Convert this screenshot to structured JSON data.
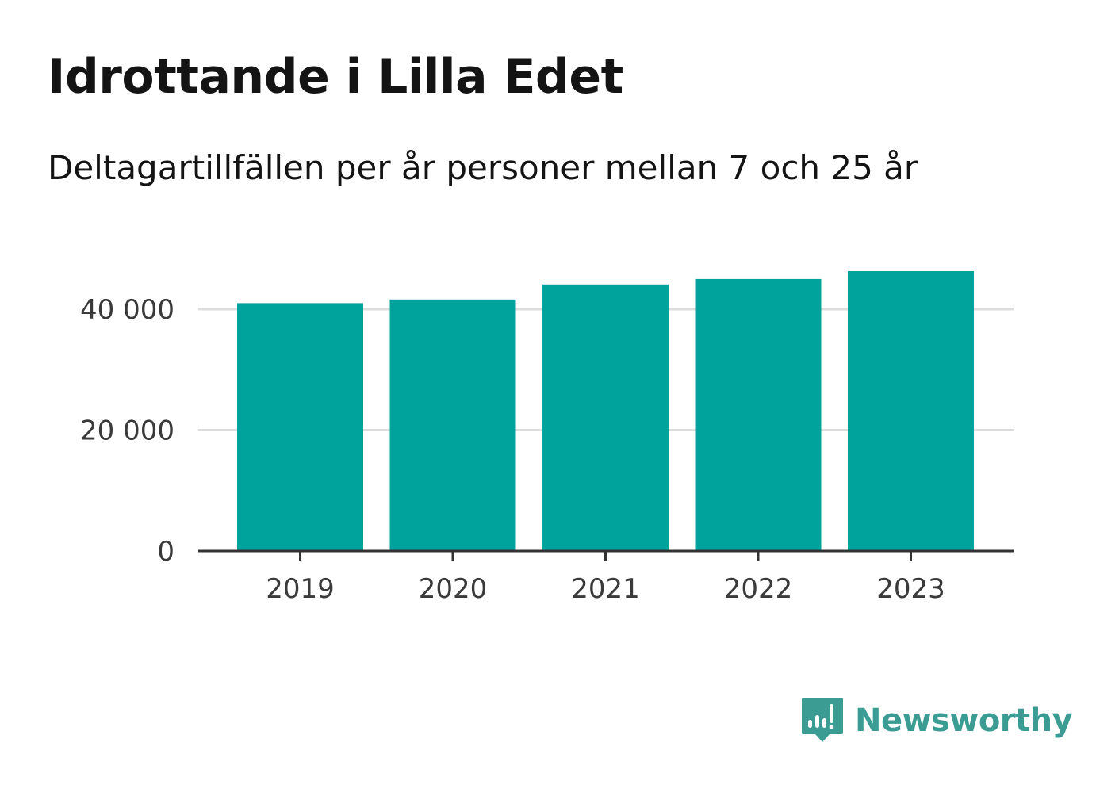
{
  "title": "Idrottande i Lilla Edet",
  "subtitle": "Deltagartillfällen per år personer mellan 7 och 25 år",
  "brand": {
    "name": "Newsworthy",
    "icon": "newsworthy-logo-icon",
    "color": "#3a9c93"
  },
  "colors": {
    "bar": "#00a39b",
    "grid": "#dddddd",
    "axis": "#333333"
  },
  "chart_data": {
    "type": "bar",
    "categories": [
      "2019",
      "2020",
      "2021",
      "2022",
      "2023"
    ],
    "values": [
      41000,
      41600,
      44100,
      45000,
      46300
    ],
    "title": "Idrottande i Lilla Edet",
    "subtitle": "Deltagartillfällen per år personer mellan 7 och 25 år",
    "xlabel": "",
    "ylabel": "",
    "ylim": [
      0,
      46300
    ],
    "yticks": [
      0,
      20000,
      40000
    ],
    "ytick_labels": [
      "0",
      "20 000",
      "40 000"
    ],
    "grid": true,
    "legend": "none"
  }
}
